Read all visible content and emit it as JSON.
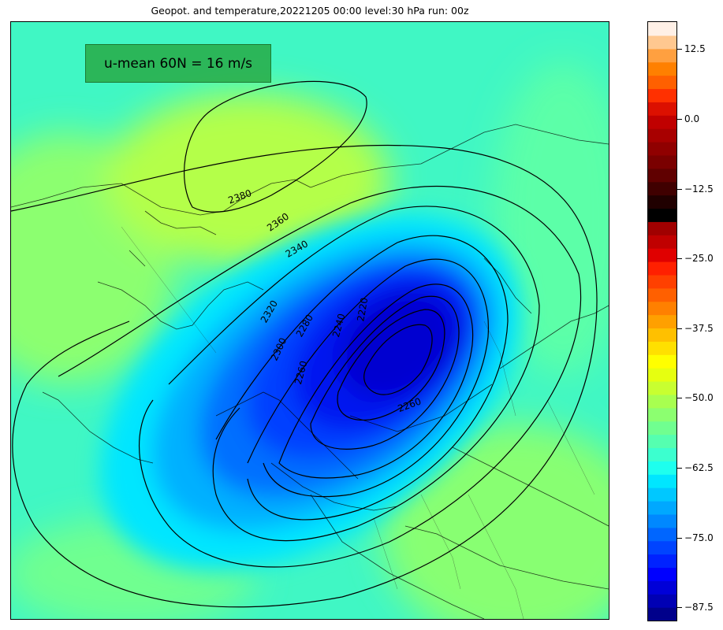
{
  "title": "Geopot. and temperature,20221205 00:00 level:30 hPa run: 00z",
  "info_box": {
    "text": "u-mean 60N = 16 m/s"
  },
  "map": {
    "field": "temperature",
    "contour_variable": "geopotential",
    "contour_labels": [
      {
        "text": "2380",
        "rot": -20
      },
      {
        "text": "2360",
        "rot": -35
      },
      {
        "text": "2340",
        "rot": -30
      },
      {
        "text": "2320",
        "rot": -60
      },
      {
        "text": "2300",
        "rot": -65
      },
      {
        "text": "2280",
        "rot": -60
      },
      {
        "text": "2260",
        "rot": -75
      },
      {
        "text": "2240",
        "rot": -75
      },
      {
        "text": "2220",
        "rot": -80
      },
      {
        "text": "2260",
        "rot": -20
      }
    ]
  },
  "colorbar": {
    "min": -90,
    "max": 17.5,
    "step": 2.5,
    "tick_labels": [
      "12.5",
      "0.0",
      "−12.5",
      "−25.0",
      "−37.5",
      "−50.0",
      "−62.5",
      "−75.0",
      "−87.5"
    ],
    "tick_values": [
      12.5,
      0,
      -12.5,
      -25,
      -37.5,
      -50,
      -62.5,
      -75,
      -87.5
    ],
    "colors": [
      "#00008b",
      "#0000b4",
      "#0000d8",
      "#0000ff",
      "#0022ff",
      "#0044ff",
      "#0066ff",
      "#0088ff",
      "#00a8ff",
      "#00c8ff",
      "#00e6ff",
      "#1effee",
      "#3cffcf",
      "#55ffb0",
      "#70ff90",
      "#8cff70",
      "#a8ff50",
      "#c8ff30",
      "#e6ff10",
      "#ffff00",
      "#ffe000",
      "#ffc000",
      "#ffa000",
      "#ff8000",
      "#ff6000",
      "#ff4000",
      "#ff2000",
      "#e00000",
      "#c00000",
      "#a00000",
      "#000000",
      "#200000",
      "#400000",
      "#600000",
      "#7a0000",
      "#900000",
      "#a80000",
      "#c00000",
      "#dc1000",
      "#ff3000",
      "#ff6000",
      "#ff8000",
      "#ffa040",
      "#ffc890",
      "#fff0e6"
    ]
  }
}
